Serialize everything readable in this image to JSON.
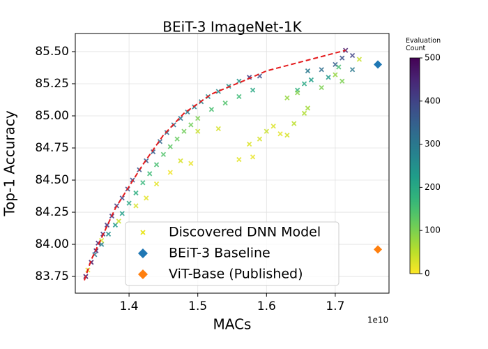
{
  "chart_data": {
    "type": "scatter",
    "title": "BEiT-3 ImageNet-1K",
    "x_label": "MACs",
    "x_offset_label": "1e10",
    "y_label": "Top-1 Accuracy",
    "xlim": [
      1.3218,
      1.7782
    ],
    "ylim": [
      83.62,
      85.641
    ],
    "xticks": [
      1.4,
      1.5,
      1.6,
      1.7
    ],
    "yticks": [
      {
        "value": 83.75,
        "label": "83.75"
      },
      {
        "value": 84.0,
        "label": "84.00"
      },
      {
        "value": 84.25,
        "label": "84.25"
      },
      {
        "value": 84.5,
        "label": "84.50"
      },
      {
        "value": 84.75,
        "label": "84.75"
      },
      {
        "value": 85.0,
        "label": "85.00"
      },
      {
        "value": 85.25,
        "label": "85.25"
      },
      {
        "value": 85.5,
        "label": "85.50"
      }
    ],
    "grid": true,
    "legend": "lower center",
    "colorbar": {
      "label": "Evaluation\nCount",
      "lim": [
        0,
        500
      ],
      "ticks": [
        0,
        100,
        200,
        300,
        400,
        500
      ],
      "colormap": "viridis_r"
    },
    "series": [
      {
        "name": "Discovered DNN Model",
        "marker": "x",
        "color": "#e8e419",
        "x": [
          1.337,
          1.345,
          1.352,
          1.355,
          1.362,
          1.368,
          1.375,
          1.382,
          1.39,
          1.398,
          1.405,
          1.415,
          1.425,
          1.435,
          1.445,
          1.455,
          1.465,
          1.475,
          1.485,
          1.495,
          1.505,
          1.515,
          1.53,
          1.545,
          1.56,
          1.575,
          1.59,
          1.66,
          1.68,
          1.7,
          1.715,
          1.725,
          1.71,
          1.35,
          1.36,
          1.37,
          1.38,
          1.39,
          1.4,
          1.41,
          1.42,
          1.43,
          1.44,
          1.45,
          1.46,
          1.47,
          1.48,
          1.49,
          1.5,
          1.52,
          1.54,
          1.56,
          1.58,
          1.645,
          1.655,
          1.665,
          1.69,
          1.705,
          1.71,
          1.725,
          1.34,
          1.36,
          1.385,
          1.41,
          1.425,
          1.44,
          1.46,
          1.475,
          1.49,
          1.5,
          1.53,
          1.56,
          1.575,
          1.58,
          1.59,
          1.6,
          1.61,
          1.62,
          1.63,
          1.64,
          1.655,
          1.66,
          1.63,
          1.645,
          1.68,
          1.7,
          1.735
        ],
        "values": [
          83.75,
          83.86,
          83.95,
          84.01,
          84.08,
          84.15,
          84.22,
          84.3,
          84.36,
          84.43,
          84.5,
          84.58,
          84.65,
          84.72,
          84.8,
          84.87,
          84.93,
          84.98,
          85.03,
          85.07,
          85.11,
          85.15,
          85.19,
          85.23,
          85.27,
          85.3,
          85.31,
          85.35,
          85.36,
          85.4,
          85.51,
          85.47,
          85.45,
          83.92,
          84.0,
          84.08,
          84.15,
          84.24,
          84.32,
          84.4,
          84.48,
          84.55,
          84.62,
          84.7,
          84.76,
          84.82,
          84.88,
          84.93,
          84.98,
          85.05,
          85.1,
          85.15,
          85.2,
          85.2,
          85.25,
          85.28,
          85.3,
          85.38,
          85.27,
          85.36,
          83.8,
          84.03,
          84.18,
          84.3,
          84.36,
          84.47,
          84.56,
          84.65,
          84.63,
          84.88,
          84.9,
          84.66,
          84.78,
          84.68,
          84.82,
          84.88,
          84.92,
          84.86,
          84.85,
          84.94,
          85.02,
          85.06,
          85.14,
          85.18,
          85.22,
          85.32,
          85.44
        ],
        "c": [
          480,
          470,
          460,
          450,
          440,
          430,
          420,
          410,
          400,
          390,
          380,
          370,
          360,
          350,
          340,
          330,
          320,
          310,
          300,
          290,
          280,
          270,
          260,
          250,
          240,
          420,
          380,
          300,
          320,
          350,
          460,
          400,
          380,
          300,
          280,
          250,
          230,
          220,
          200,
          190,
          170,
          160,
          150,
          140,
          130,
          120,
          110,
          110,
          100,
          150,
          140,
          160,
          200,
          180,
          200,
          220,
          230,
          150,
          100,
          300,
          20,
          30,
          40,
          30,
          20,
          20,
          10,
          30,
          15,
          40,
          30,
          20,
          25,
          15,
          30,
          40,
          25,
          20,
          30,
          50,
          60,
          70,
          80,
          90,
          100,
          80,
          40
        ]
      },
      {
        "name": "BEiT-3 Baseline",
        "marker": "D",
        "color": "#1f77b4",
        "x": [
          1.762
        ],
        "values": [
          85.4
        ]
      },
      {
        "name": "ViT-Base (Published)",
        "marker": "D",
        "color": "#ff7f0e",
        "x": [
          1.762
        ],
        "values": [
          83.96
        ]
      }
    ],
    "front": {
      "color": "#e41a1c",
      "style": "dashed",
      "x": [
        1.335,
        1.345,
        1.36,
        1.38,
        1.4,
        1.42,
        1.45,
        1.48,
        1.52,
        1.57,
        1.6,
        1.65,
        1.715
      ],
      "values": [
        83.72,
        83.88,
        84.05,
        84.28,
        84.45,
        84.62,
        84.85,
        85.02,
        85.17,
        85.28,
        85.35,
        85.42,
        85.51
      ]
    }
  }
}
